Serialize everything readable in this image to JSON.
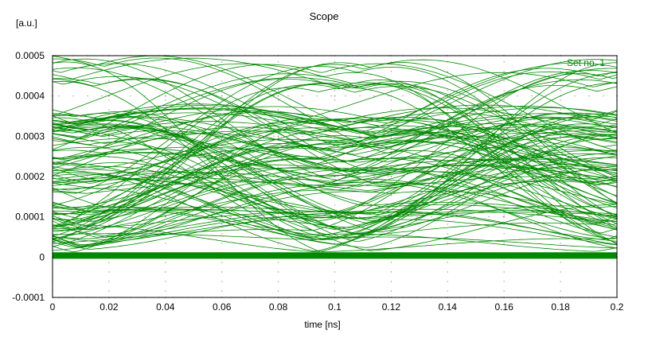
{
  "chart_data": {
    "type": "line",
    "title": "Scope",
    "xlabel": "time [ns]",
    "ylabel": "[a.u.]",
    "xlim": [
      0,
      0.2
    ],
    "ylim": [
      -0.0001,
      0.0005
    ],
    "x_ticks": [
      "0",
      "0.02",
      "0.04",
      "0.06",
      "0.08",
      "0.1",
      "0.12",
      "0.14",
      "0.16",
      "0.18",
      "0.2"
    ],
    "x_tick_values": [
      0,
      0.02,
      0.04,
      0.06,
      0.08,
      0.1,
      0.12,
      0.14,
      0.16,
      0.18,
      0.2
    ],
    "y_ticks": [
      "0.0005",
      "0.0004",
      "0.0003",
      "0.0002",
      "0.0001",
      "0",
      "-0.0001"
    ],
    "y_tick_values": [
      0.0005,
      0.0004,
      0.0003,
      0.0002,
      0.0001,
      0,
      -0.0001
    ],
    "grid": "dotted",
    "legend_position": "top-right",
    "series": [
      {
        "name": "Set no. 1",
        "color": "#008800",
        "description_kind": "eye-diagram",
        "symbol_period": 0.1,
        "peak_max": 0.00048,
        "peak_typical": 0.00035,
        "baseline": 1e-05,
        "trace_count": 120
      }
    ]
  },
  "colors": {
    "trace": "#008800",
    "axis": "#000000",
    "grid": "#999999",
    "background": "#ffffff"
  }
}
